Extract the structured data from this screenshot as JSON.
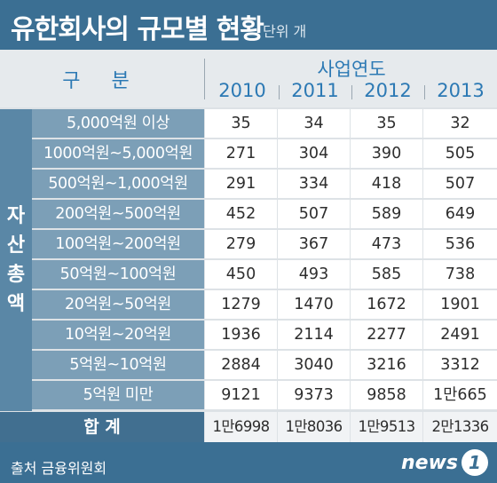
{
  "title": "유한회사의 규모별 현황",
  "unit": "단위 개",
  "header": {
    "category": "구 분",
    "group": "사업연도",
    "years": [
      "2010",
      "2011",
      "2012",
      "2013"
    ]
  },
  "side_label": [
    "자",
    "산",
    "총",
    "액"
  ],
  "rows": [
    {
      "label": "5,000억원 이상",
      "values": [
        "35",
        "34",
        "35",
        "32"
      ]
    },
    {
      "label": "1000억원~5,000억원",
      "values": [
        "271",
        "304",
        "390",
        "505"
      ]
    },
    {
      "label": "500억원~1,000억원",
      "values": [
        "291",
        "334",
        "418",
        "507"
      ]
    },
    {
      "label": "200억원~500억원",
      "values": [
        "452",
        "507",
        "589",
        "649"
      ]
    },
    {
      "label": "100억원~200억원",
      "values": [
        "279",
        "367",
        "473",
        "536"
      ]
    },
    {
      "label": "50억원~100억원",
      "values": [
        "450",
        "493",
        "585",
        "738"
      ]
    },
    {
      "label": "20억원~50억원",
      "values": [
        "1279",
        "1470",
        "1672",
        "1901"
      ]
    },
    {
      "label": "10억원~20억원",
      "values": [
        "1936",
        "2114",
        "2277",
        "2491"
      ]
    },
    {
      "label": "5억원~10억원",
      "values": [
        "2884",
        "3040",
        "3216",
        "3312"
      ]
    },
    {
      "label": "5억원 미만",
      "values": [
        "9121",
        "9373",
        "9858",
        "1만665"
      ]
    }
  ],
  "total": {
    "label": "합 계",
    "values": [
      "1만6998",
      "1만8036",
      "1만9513",
      "2만1336"
    ]
  },
  "source": "출처 금융위원회",
  "logo": {
    "text": "news",
    "badge": "1"
  },
  "colors": {
    "background": "#3b6f93",
    "label_cell": "#7c9fb7",
    "side_band": "#5a87a6",
    "header_text": "#2c79b4"
  }
}
